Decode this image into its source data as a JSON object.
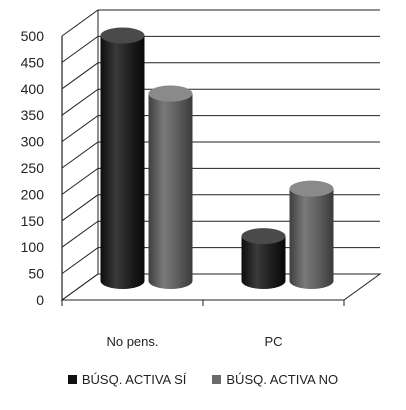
{
  "chart_data": {
    "type": "bar",
    "title": "",
    "xlabel": "",
    "ylabel": "",
    "categories": [
      "No pens.",
      "PC"
    ],
    "series": [
      {
        "name": "BÚSQ. ACTIVA SÍ",
        "values": [
          465,
          85
        ],
        "color": "#1f1f1f"
      },
      {
        "name": "BÚSQ. ACTIVA NO",
        "values": [
          355,
          175
        ],
        "color": "#5c5c5c"
      }
    ],
    "yticks": [
      0,
      50,
      100,
      150,
      200,
      250,
      300,
      350,
      400,
      450,
      500
    ],
    "ylim": [
      0,
      500
    ],
    "grid": true,
    "legend_position": "bottom",
    "style": "3d-cylinder"
  }
}
